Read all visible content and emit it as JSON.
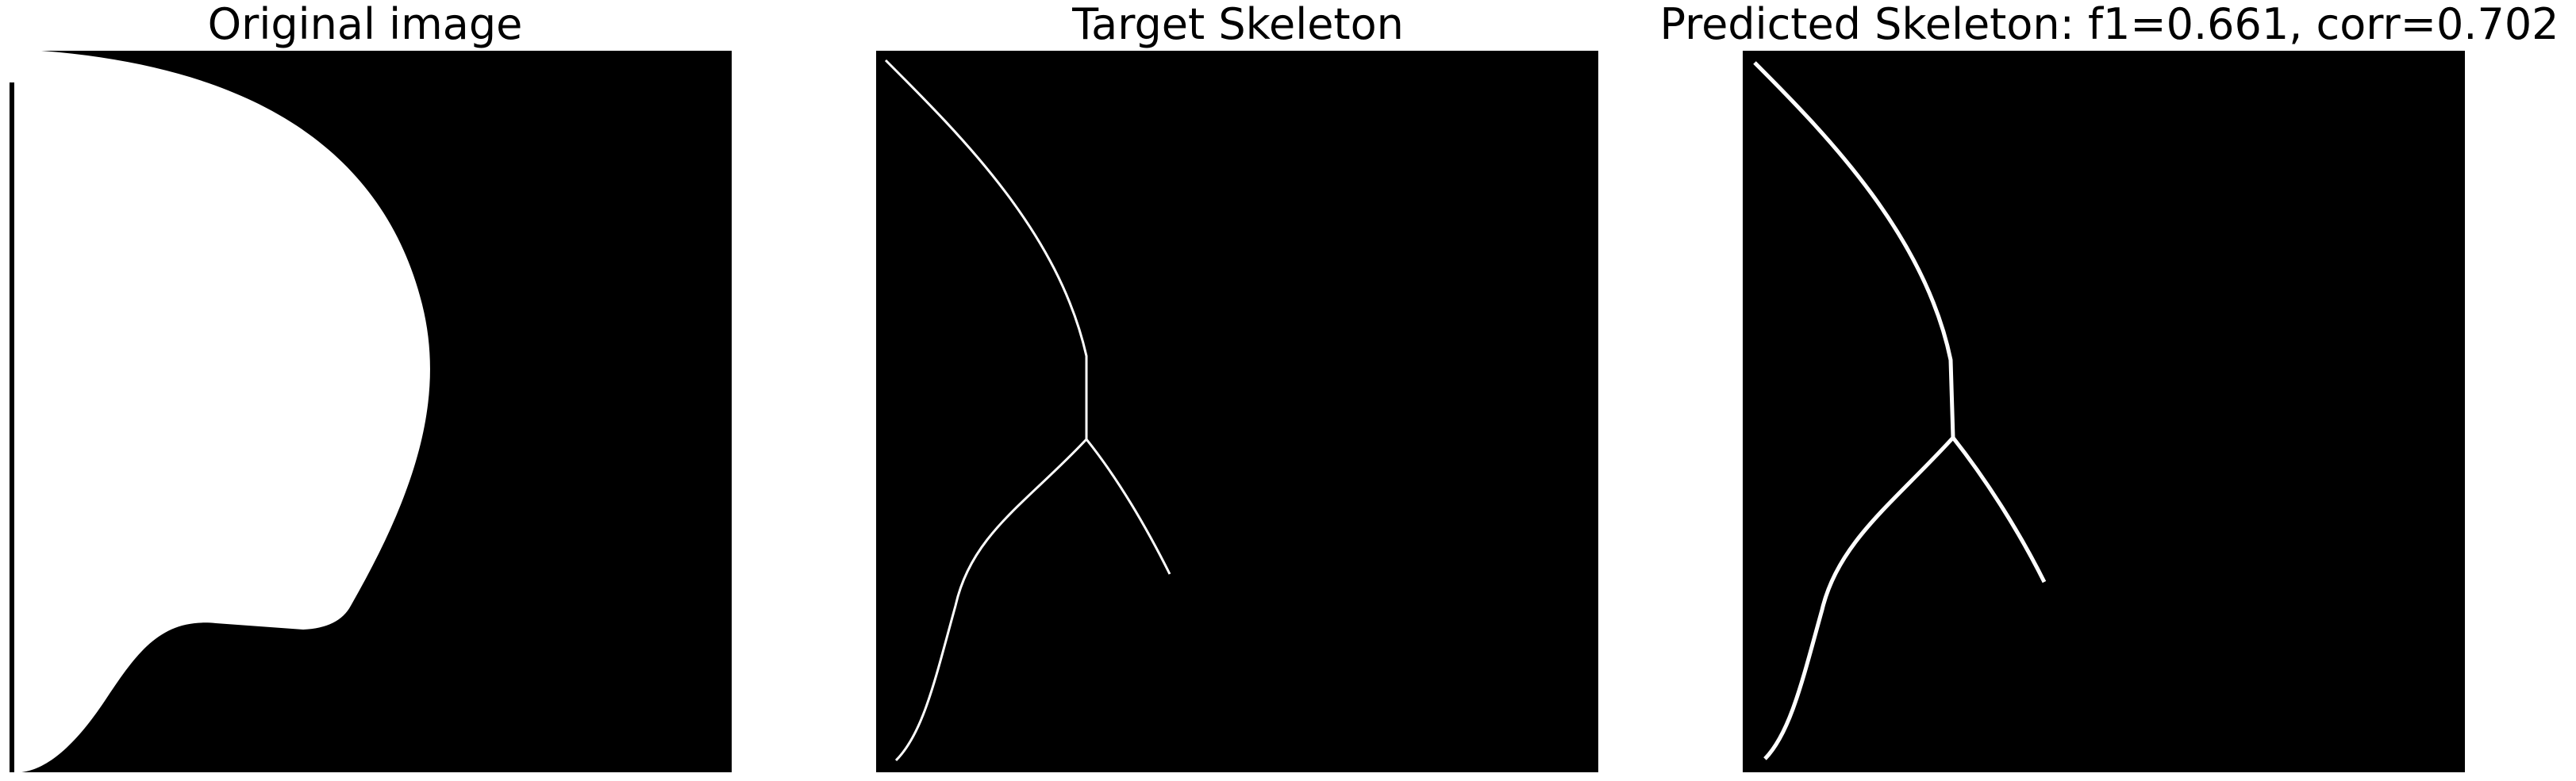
{
  "panels": [
    {
      "title": "Original image"
    },
    {
      "title": "Target Skeleton"
    },
    {
      "title": "Predicted Skeleton: f1=0.661, corr=0.702"
    }
  ],
  "colors": {
    "background": "#000000",
    "foreground": "#ffffff",
    "page": "#ffffff"
  }
}
